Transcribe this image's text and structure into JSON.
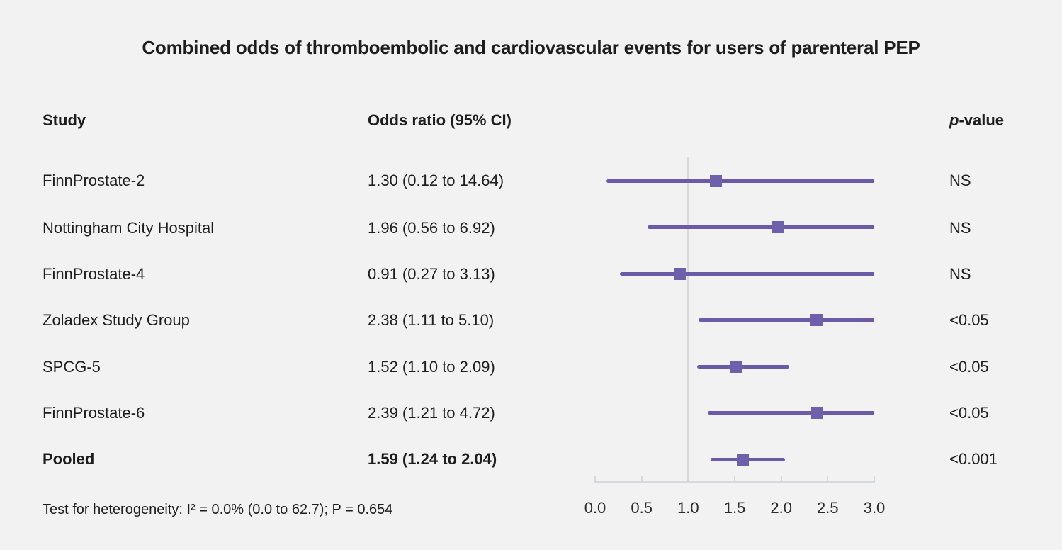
{
  "figure": {
    "title": "Combined odds of thromboembolic and cardiovascular events for users of parenteral PEP",
    "columns": {
      "study": "Study",
      "odds_ratio": "Odds ratio (95% CI)",
      "p_italic": "p",
      "p_rest": "-value"
    },
    "footnote": "Test for heterogeneity: I² = 0.0% (0.0 to 62.7); P = 0.654"
  },
  "chart_data": {
    "type": "forest",
    "title": "Combined odds of thromboembolic and cardiovascular events for users of parenteral PEP",
    "xlabel": "Odds ratio",
    "x_axis": {
      "min": 0.0,
      "max": 3.0,
      "ticks": [
        "0.0",
        "0.5",
        "1.0",
        "1.5",
        "2.0",
        "2.5",
        "3.0"
      ],
      "reference_line": 1.0,
      "note": "confidence intervals extending beyond 3.0 are clipped at the right edge"
    },
    "series": [
      {
        "study": "FinnProstate-2",
        "or": 1.3,
        "lo": 0.12,
        "hi": 14.64,
        "label": "1.30 (0.12 to 14.64)",
        "p": "NS"
      },
      {
        "study": "Nottingham City Hospital",
        "or": 1.96,
        "lo": 0.56,
        "hi": 6.92,
        "label": "1.96 (0.56 to 6.92)",
        "p": "NS"
      },
      {
        "study": "FinnProstate-4",
        "or": 0.91,
        "lo": 0.27,
        "hi": 3.13,
        "label": "0.91 (0.27 to 3.13)",
        "p": "NS"
      },
      {
        "study": "Zoladex Study Group",
        "or": 2.38,
        "lo": 1.11,
        "hi": 5.1,
        "label": "2.38 (1.11 to 5.10)",
        "p": "<0.05"
      },
      {
        "study": "SPCG-5",
        "or": 1.52,
        "lo": 1.1,
        "hi": 2.09,
        "label": "1.52 (1.10 to 2.09)",
        "p": "<0.05"
      },
      {
        "study": "FinnProstate-6",
        "or": 2.39,
        "lo": 1.21,
        "hi": 4.72,
        "label": "2.39 (1.21 to 4.72)",
        "p": "<0.05"
      },
      {
        "study": "Pooled",
        "or": 1.59,
        "lo": 1.24,
        "hi": 2.04,
        "label": "1.59 (1.24 to 2.04)",
        "p": "<0.001",
        "pooled": true
      }
    ],
    "colors": {
      "ci_line": "#6b5aa7",
      "marker": "#6f60ab",
      "axis_line": "#d5d9de",
      "background": "#f2f2f2",
      "text": "#1d1d1d"
    }
  }
}
